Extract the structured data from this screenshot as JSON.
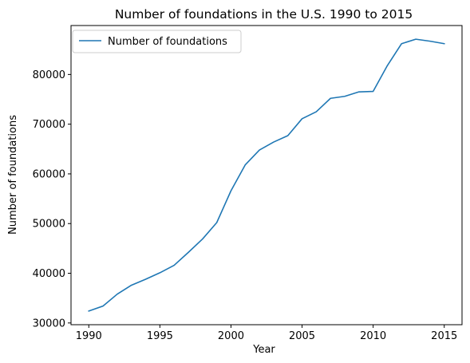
{
  "chart_data": {
    "type": "line",
    "title": "Number of foundations in the U.S. 1990 to 2015",
    "xlabel": "Year",
    "ylabel": "Number of foundations",
    "x": [
      1990,
      1991,
      1992,
      1993,
      1994,
      1995,
      1996,
      1997,
      1998,
      1999,
      2000,
      2001,
      2002,
      2003,
      2004,
      2005,
      2006,
      2007,
      2008,
      2009,
      2010,
      2011,
      2012,
      2013,
      2014,
      2015
    ],
    "series": [
      {
        "name": "Number of foundations",
        "color": "#1f77b4",
        "values": [
          32400,
          33400,
          35800,
          37600,
          38800,
          40100,
          41600,
          44200,
          46900,
          50200,
          56600,
          61800,
          64800,
          66400,
          67700,
          71100,
          72500,
          75200,
          75600,
          76500,
          76600,
          81800,
          86200,
          87100,
          86700,
          86200
        ]
      }
    ],
    "xlim": [
      1988.75,
      2016.25
    ],
    "ylim": [
      29650,
      89850
    ],
    "xticks": [
      1990,
      1995,
      2000,
      2005,
      2010,
      2015
    ],
    "yticks": [
      30000,
      40000,
      50000,
      60000,
      70000,
      80000
    ],
    "grid": false,
    "legend_position": "top-left"
  }
}
